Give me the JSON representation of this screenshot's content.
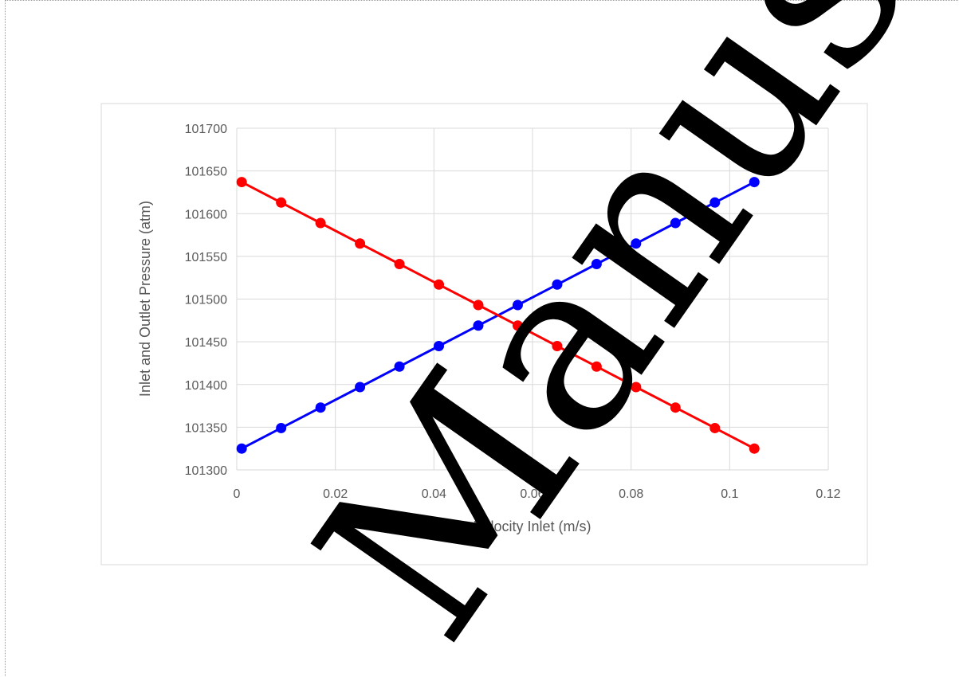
{
  "chart_data": {
    "type": "line",
    "xlabel": "Velocity Inlet (m/s)",
    "ylabel": "Inlet and Outlet Pressure (atm)",
    "xlim": [
      0,
      0.12
    ],
    "ylim": [
      101300,
      101700
    ],
    "x_ticks": [
      "0",
      "0.02",
      "0.04",
      "0.06",
      "0.08",
      "0.1",
      "0.12"
    ],
    "y_ticks": [
      "101300",
      "101350",
      "101400",
      "101450",
      "101500",
      "101550",
      "101600",
      "101650",
      "101700"
    ],
    "x": [
      0.001,
      0.009,
      0.017,
      0.025,
      0.033,
      0.041,
      0.049,
      0.057,
      0.065,
      0.073,
      0.081,
      0.089,
      0.097,
      0.105
    ],
    "series": [
      {
        "color": "#0000ff",
        "values": [
          101325,
          101349,
          101373,
          101397,
          101421,
          101445,
          101469,
          101493,
          101517,
          101541,
          101565,
          101589,
          101613,
          101637
        ]
      },
      {
        "color": "#ff0000",
        "values": [
          101637,
          101613,
          101589,
          101565,
          101541,
          101517,
          101493,
          101469,
          101445,
          101421,
          101397,
          101373,
          101349,
          101325
        ]
      }
    ],
    "grid": true,
    "legend": "none"
  },
  "watermark": {
    "text": "Manuscript"
  }
}
